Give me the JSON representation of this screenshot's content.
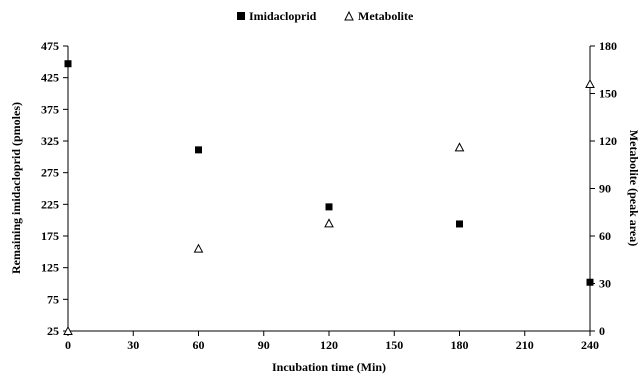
{
  "chart_data": {
    "type": "scatter",
    "title": "",
    "xlabel": "Incubation time (Min)",
    "ylabel_left": "Remaining imidacloprid (pmoles)",
    "ylabel_right": "Metabolite (peak area)",
    "xlim": [
      0,
      240
    ],
    "ylim_left": [
      25,
      475
    ],
    "ylim_right": [
      0,
      180
    ],
    "x_ticks": [
      "0",
      "30",
      "60",
      "90",
      "120",
      "150",
      "180",
      "210",
      "240"
    ],
    "y_left_ticks": [
      "25",
      "75",
      "125",
      "175",
      "225",
      "275",
      "325",
      "375",
      "425",
      "475"
    ],
    "y_right_ticks": [
      "0",
      "30",
      "60",
      "90",
      "120",
      "150",
      "180"
    ],
    "grid": false,
    "legend_position": "top-center",
    "series": [
      {
        "name": "Imidacloprid",
        "axis": "left",
        "marker": "filled-square",
        "color": "#000000",
        "points": [
          {
            "x": 0,
            "y": 447
          },
          {
            "x": 60,
            "y": 311
          },
          {
            "x": 120,
            "y": 221
          },
          {
            "x": 180,
            "y": 194
          },
          {
            "x": 240,
            "y": 102
          }
        ]
      },
      {
        "name": "Metabolite",
        "axis": "right",
        "marker": "open-triangle",
        "color": "#000000",
        "points": [
          {
            "x": 0,
            "y": 0
          },
          {
            "x": 60,
            "y": 52
          },
          {
            "x": 120,
            "y": 68
          },
          {
            "x": 180,
            "y": 116
          },
          {
            "x": 240,
            "y": 156
          }
        ]
      }
    ]
  }
}
